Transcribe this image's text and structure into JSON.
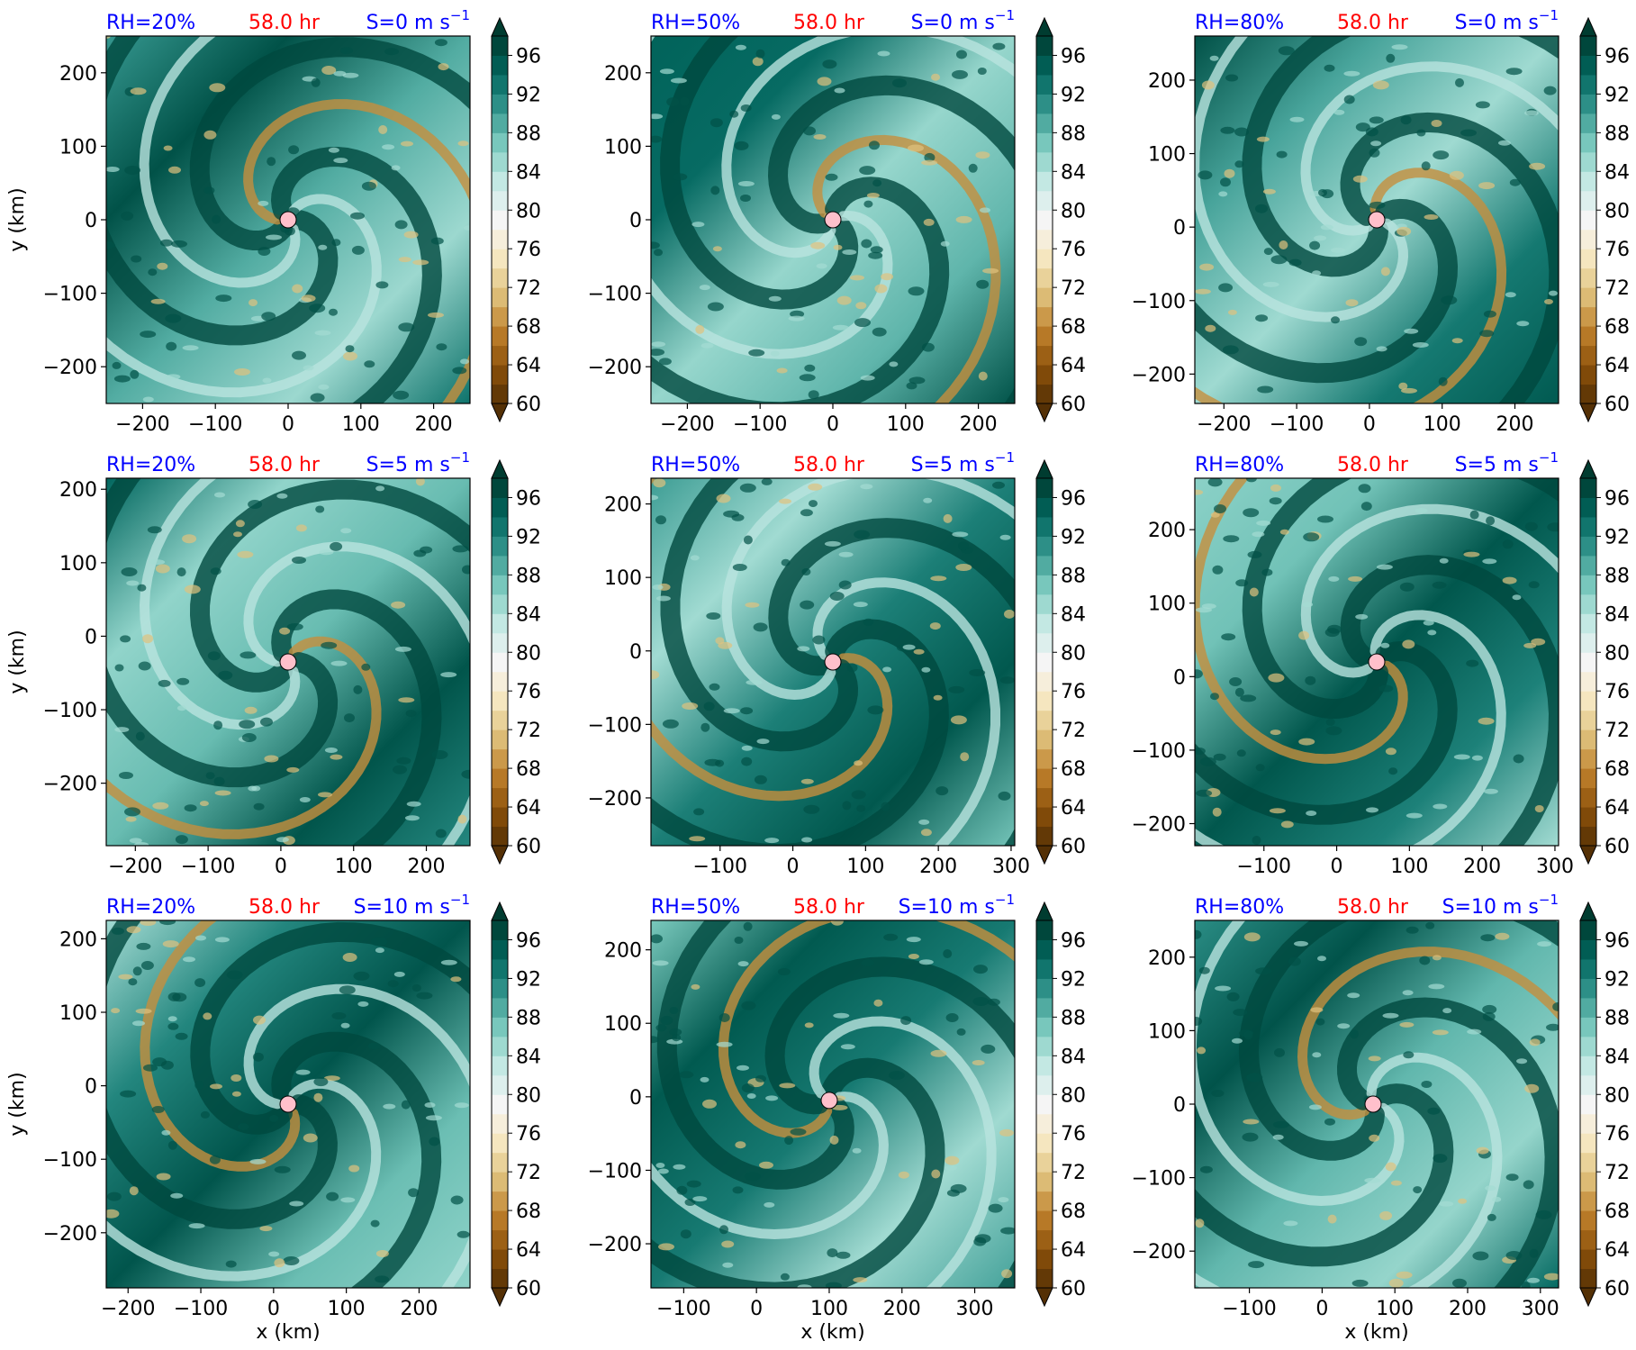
{
  "figure": {
    "xlabel": "x (km)",
    "ylabel": "y (km)",
    "colorbar_ticks": [
      "60",
      "64",
      "68",
      "72",
      "76",
      "80",
      "84",
      "88",
      "92",
      "96"
    ],
    "colorbar_levels": [
      60,
      62,
      64,
      66,
      68,
      70,
      72,
      74,
      76,
      78,
      80,
      82,
      84,
      86,
      88,
      90,
      92,
      94,
      96,
      98
    ],
    "colormap": [
      "#543005",
      "#8c510a",
      "#bf812d",
      "#dfc27d",
      "#f6e8c3",
      "#f5f5f5",
      "#c7eae5",
      "#80cdc1",
      "#35978f",
      "#01665e",
      "#003c30"
    ],
    "title_colors": {
      "rh": "#0000ff",
      "time": "#ff0000",
      "shear": "#0000ff"
    },
    "center_marker_color": "#ffc0cb"
  },
  "chart_data": [
    {
      "type": "heatmap",
      "rh_label": "RH=20%",
      "time_label": "58.0 hr",
      "shear_label": "S=0 m s",
      "shear_exp": "−1",
      "xlim": [
        -250,
        250
      ],
      "ylim": [
        -250,
        250
      ],
      "xticks": [
        -200,
        -100,
        0,
        100,
        200
      ],
      "yticks": [
        -200,
        -100,
        0,
        100,
        200
      ],
      "xtick_labels": [
        "−200",
        "−100",
        "0",
        "100",
        "200"
      ],
      "ytick_labels": [
        "−200",
        "−100",
        "0",
        "100",
        "200"
      ],
      "center": [
        0,
        0
      ],
      "show_ylabel": true,
      "show_xlabel": false
    },
    {
      "type": "heatmap",
      "rh_label": "RH=50%",
      "time_label": "58.0 hr",
      "shear_label": "S=0 m s",
      "shear_exp": "−1",
      "xlim": [
        -250,
        250
      ],
      "ylim": [
        -250,
        250
      ],
      "xticks": [
        -200,
        -100,
        0,
        100,
        200
      ],
      "yticks": [
        -200,
        -100,
        0,
        100,
        200
      ],
      "xtick_labels": [
        "−200",
        "−100",
        "0",
        "100",
        "200"
      ],
      "ytick_labels": [
        "−200",
        "−100",
        "0",
        "100",
        "200"
      ],
      "center": [
        0,
        0
      ],
      "show_ylabel": false,
      "show_xlabel": false
    },
    {
      "type": "heatmap",
      "rh_label": "RH=80%",
      "time_label": "58.0 hr",
      "shear_label": "S=0 m s",
      "shear_exp": "−1",
      "xlim": [
        -240,
        260
      ],
      "ylim": [
        -240,
        260
      ],
      "xticks": [
        -200,
        -100,
        0,
        100,
        200
      ],
      "yticks": [
        -200,
        -100,
        0,
        100,
        200
      ],
      "xtick_labels": [
        "−200",
        "−100",
        "0",
        "100",
        "200"
      ],
      "ytick_labels": [
        "−200",
        "−100",
        "0",
        "100",
        "200"
      ],
      "center": [
        10,
        10
      ],
      "show_ylabel": false,
      "show_xlabel": false
    },
    {
      "type": "heatmap",
      "rh_label": "RH=20%",
      "time_label": "58.0 hr",
      "shear_label": "S=5 m s",
      "shear_exp": "−1",
      "xlim": [
        -240,
        260
      ],
      "ylim": [
        -285,
        215
      ],
      "xticks": [
        -200,
        -100,
        0,
        100,
        200
      ],
      "yticks": [
        -200,
        -100,
        0,
        100,
        200
      ],
      "xtick_labels": [
        "−200",
        "−100",
        "0",
        "100",
        "200"
      ],
      "ytick_labels": [
        "−200",
        "−100",
        "0",
        "100",
        "200"
      ],
      "center": [
        10,
        -35
      ],
      "show_ylabel": true,
      "show_xlabel": false
    },
    {
      "type": "heatmap",
      "rh_label": "RH=50%",
      "time_label": "58.0 hr",
      "shear_label": "S=5 m s",
      "shear_exp": "−1",
      "xlim": [
        -195,
        305
      ],
      "ylim": [
        -265,
        235
      ],
      "xticks": [
        -100,
        0,
        100,
        200,
        300
      ],
      "yticks": [
        -200,
        -100,
        0,
        100,
        200
      ],
      "xtick_labels": [
        "−100",
        "0",
        "100",
        "200",
        "300"
      ],
      "ytick_labels": [
        "−200",
        "−100",
        "0",
        "100",
        "200"
      ],
      "center": [
        55,
        -15
      ],
      "show_ylabel": false,
      "show_xlabel": false
    },
    {
      "type": "heatmap",
      "rh_label": "RH=80%",
      "time_label": "58.0 hr",
      "shear_label": "S=5 m s",
      "shear_exp": "−1",
      "xlim": [
        -195,
        305
      ],
      "ylim": [
        -230,
        270
      ],
      "xticks": [
        -100,
        0,
        100,
        200,
        300
      ],
      "yticks": [
        -200,
        -100,
        0,
        100,
        200
      ],
      "xtick_labels": [
        "−100",
        "0",
        "100",
        "200",
        "300"
      ],
      "ytick_labels": [
        "−200",
        "−100",
        "0",
        "100",
        "200"
      ],
      "center": [
        55,
        20
      ],
      "show_ylabel": false,
      "show_xlabel": false
    },
    {
      "type": "heatmap",
      "rh_label": "RH=20%",
      "time_label": "58.0 hr",
      "shear_label": "S=10 m s",
      "shear_exp": "−1",
      "xlim": [
        -230,
        270
      ],
      "ylim": [
        -275,
        225
      ],
      "xticks": [
        -200,
        -100,
        0,
        100,
        200
      ],
      "yticks": [
        -200,
        -100,
        0,
        100,
        200
      ],
      "xtick_labels": [
        "−200",
        "−100",
        "0",
        "100",
        "200"
      ],
      "ytick_labels": [
        "−200",
        "−100",
        "0",
        "100",
        "200"
      ],
      "center": [
        20,
        -25
      ],
      "show_ylabel": true,
      "show_xlabel": true
    },
    {
      "type": "heatmap",
      "rh_label": "RH=50%",
      "time_label": "58.0 hr",
      "shear_label": "S=10 m s",
      "shear_exp": "−1",
      "xlim": [
        -145,
        355
      ],
      "ylim": [
        -260,
        240
      ],
      "xticks": [
        -100,
        0,
        100,
        200,
        300
      ],
      "yticks": [
        -200,
        -100,
        0,
        100,
        200
      ],
      "xtick_labels": [
        "−100",
        "0",
        "100",
        "200",
        "300"
      ],
      "ytick_labels": [
        "−200",
        "−100",
        "0",
        "100",
        "200"
      ],
      "center": [
        100,
        -5
      ],
      "show_ylabel": false,
      "show_xlabel": true
    },
    {
      "type": "heatmap",
      "rh_label": "RH=80%",
      "time_label": "58.0 hr",
      "shear_label": "S=10 m s",
      "shear_exp": "−1",
      "xlim": [
        -175,
        325
      ],
      "ylim": [
        -250,
        250
      ],
      "xticks": [
        -100,
        0,
        100,
        200,
        300
      ],
      "yticks": [
        -200,
        -100,
        0,
        100,
        200
      ],
      "xtick_labels": [
        "−100",
        "0",
        "100",
        "200",
        "300"
      ],
      "ytick_labels": [
        "−200",
        "−100",
        "0",
        "100",
        "200"
      ],
      "center": [
        70,
        0
      ],
      "show_ylabel": false,
      "show_xlabel": true
    }
  ]
}
